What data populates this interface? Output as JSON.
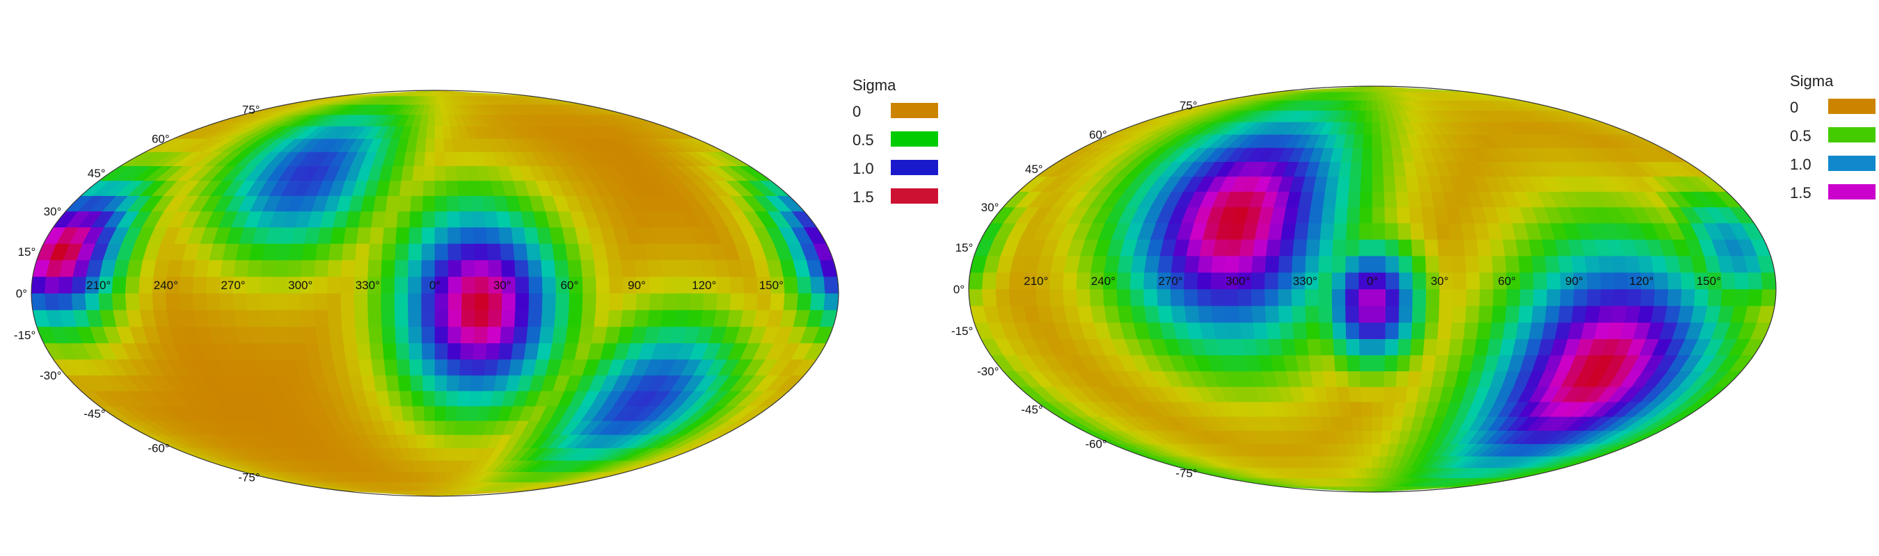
{
  "chart_data": [
    {
      "type": "heatmap",
      "projection": "mollweide",
      "title": "",
      "xlabel": "",
      "ylabel": "",
      "lon_tick_labels": [
        "210°",
        "240°",
        "270°",
        "300°",
        "330°",
        "0°",
        "30°",
        "60°",
        "90°",
        "120°",
        "150°"
      ],
      "lon_tick_values": [
        210,
        240,
        270,
        300,
        330,
        0,
        30,
        60,
        90,
        120,
        150
      ],
      "lat_tick_labels": [
        "75°",
        "60°",
        "45°",
        "30°",
        "15°",
        "0°",
        "-15°",
        "-30°",
        "-45°",
        "-60°",
        "-75°"
      ],
      "lat_tick_values": [
        75,
        60,
        45,
        30,
        15,
        0,
        -15,
        -30,
        -45,
        -60,
        -75
      ],
      "legend": {
        "title": "Sigma",
        "placement": "right",
        "entries": [
          {
            "label": "0",
            "color": "#cc8400"
          },
          {
            "label": "0.5",
            "color": "#00cc00"
          },
          {
            "label": "1.0",
            "color": "#1a1acc"
          },
          {
            "label": "1.5",
            "color": "#cc1133"
          }
        ]
      },
      "zrange": [
        0,
        1.6
      ],
      "grid_resolution_deg": 6,
      "hotspots": [
        {
          "lon": 20,
          "lat": -5,
          "sigma": 1.6,
          "spread": 30
        },
        {
          "lon": 290,
          "lat": 45,
          "sigma": 1.2,
          "spread": 26
        },
        {
          "lon": 190,
          "lat": 15,
          "sigma": 1.6,
          "spread": 22
        },
        {
          "lon": 110,
          "lat": -40,
          "sigma": 1.2,
          "spread": 26
        }
      ]
    },
    {
      "type": "heatmap",
      "projection": "mollweide",
      "title": "",
      "xlabel": "",
      "ylabel": "",
      "lon_tick_labels": [
        "210°",
        "240°",
        "270°",
        "300°",
        "330°",
        "0°",
        "30°",
        "60°",
        "90°",
        "120°",
        "150°"
      ],
      "lon_tick_values": [
        210,
        240,
        270,
        300,
        330,
        0,
        30,
        60,
        90,
        120,
        150
      ],
      "lat_tick_labels": [
        "75°",
        "60°",
        "45°",
        "30°",
        "15°",
        "0°",
        "-15°",
        "-30°",
        "-45°",
        "-60°",
        "-75°"
      ],
      "lat_tick_values": [
        75,
        60,
        45,
        30,
        15,
        0,
        -15,
        -30,
        -45,
        -60,
        -75
      ],
      "legend": {
        "title": "Sigma",
        "placement": "right",
        "entries": [
          {
            "label": "0",
            "color": "#cc8400"
          },
          {
            "label": "0.5",
            "color": "#44cc00"
          },
          {
            "label": "1.0",
            "color": "#1188cc"
          },
          {
            "label": "1.5",
            "color": "#cc00cc"
          }
        ]
      },
      "zrange": [
        0,
        1.6
      ],
      "grid_resolution_deg": 6,
      "hotspots": [
        {
          "lon": 295,
          "lat": 25,
          "sigma": 1.6,
          "spread": 38
        },
        {
          "lon": 110,
          "lat": -30,
          "sigma": 1.6,
          "spread": 38
        },
        {
          "lon": 0,
          "lat": -5,
          "sigma": 1.45,
          "spread": 18
        },
        {
          "lon": 165,
          "lat": 15,
          "sigma": 1.0,
          "spread": 18
        }
      ]
    }
  ]
}
